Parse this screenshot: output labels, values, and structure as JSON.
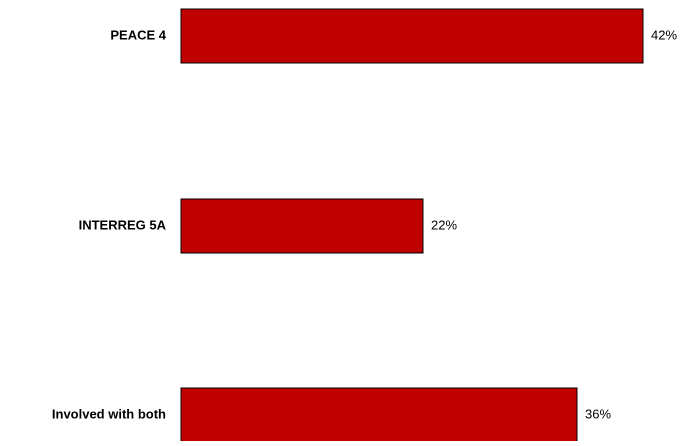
{
  "chart_data": {
    "type": "bar",
    "orientation": "horizontal",
    "categories": [
      "PEACE 4",
      "INTERREG 5A",
      "Involved with both"
    ],
    "values": [
      42,
      22,
      36
    ],
    "value_labels": [
      "42%",
      "22%",
      "36%"
    ],
    "unit": "%",
    "xlim": [
      0,
      50
    ],
    "title": "",
    "xlabel": "",
    "ylabel": "",
    "grid": false,
    "legend": "none",
    "bar_color": "#c00000",
    "bar_stroke": "#000000"
  }
}
